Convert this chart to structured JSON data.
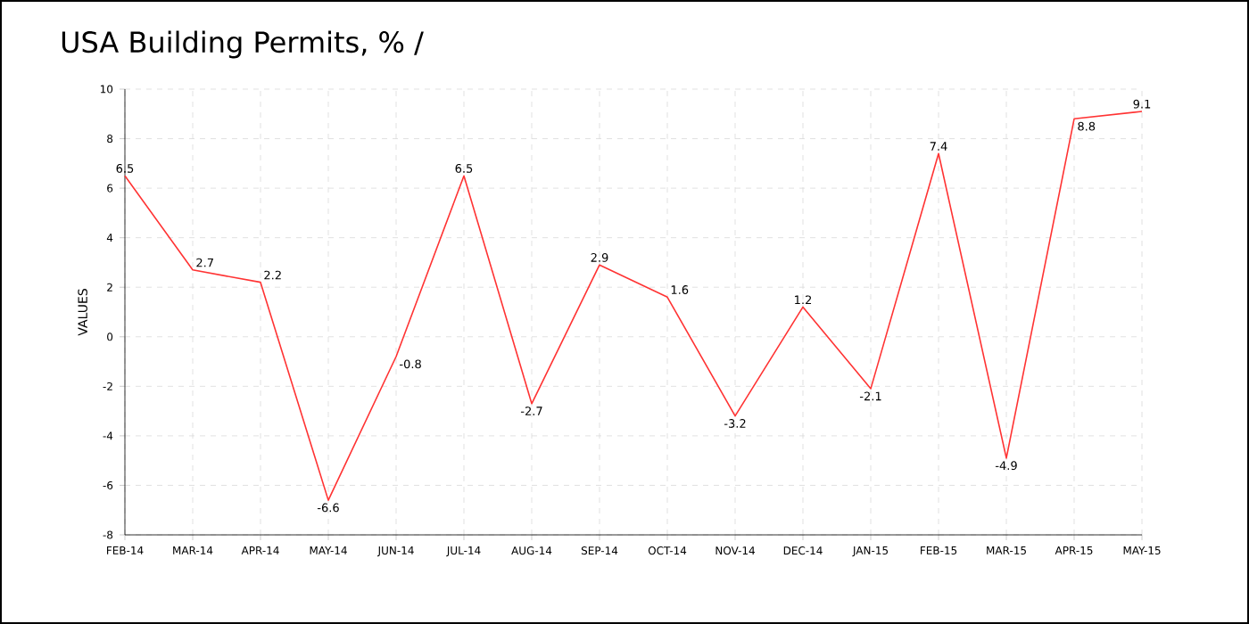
{
  "chart_data": {
    "type": "line",
    "title": "USA Building Permits, %  /",
    "ylabel": "VALUES",
    "categories": [
      "FEB-14",
      "MAR-14",
      "APR-14",
      "MAY-14",
      "JUN-14",
      "JUL-14",
      "AUG-14",
      "SEP-14",
      "OCT-14",
      "NOV-14",
      "DEC-14",
      "JAN-15",
      "FEB-15",
      "MAR-15",
      "APR-15",
      "MAY-15"
    ],
    "series": [
      {
        "color": "#ff3333",
        "values": [
          6.5,
          2.7,
          2.2,
          -6.6,
          -0.8,
          6.5,
          -2.7,
          2.9,
          1.6,
          -3.2,
          1.2,
          -2.1,
          7.4,
          -4.9,
          8.8,
          9.1
        ]
      }
    ],
    "ylim": [
      -8,
      10
    ],
    "yticks": [
      -8,
      -6,
      -4,
      -2,
      0,
      2,
      4,
      6,
      8,
      10
    ],
    "grid": true,
    "data_labels": true,
    "marker": "none",
    "line_style": "solid"
  }
}
